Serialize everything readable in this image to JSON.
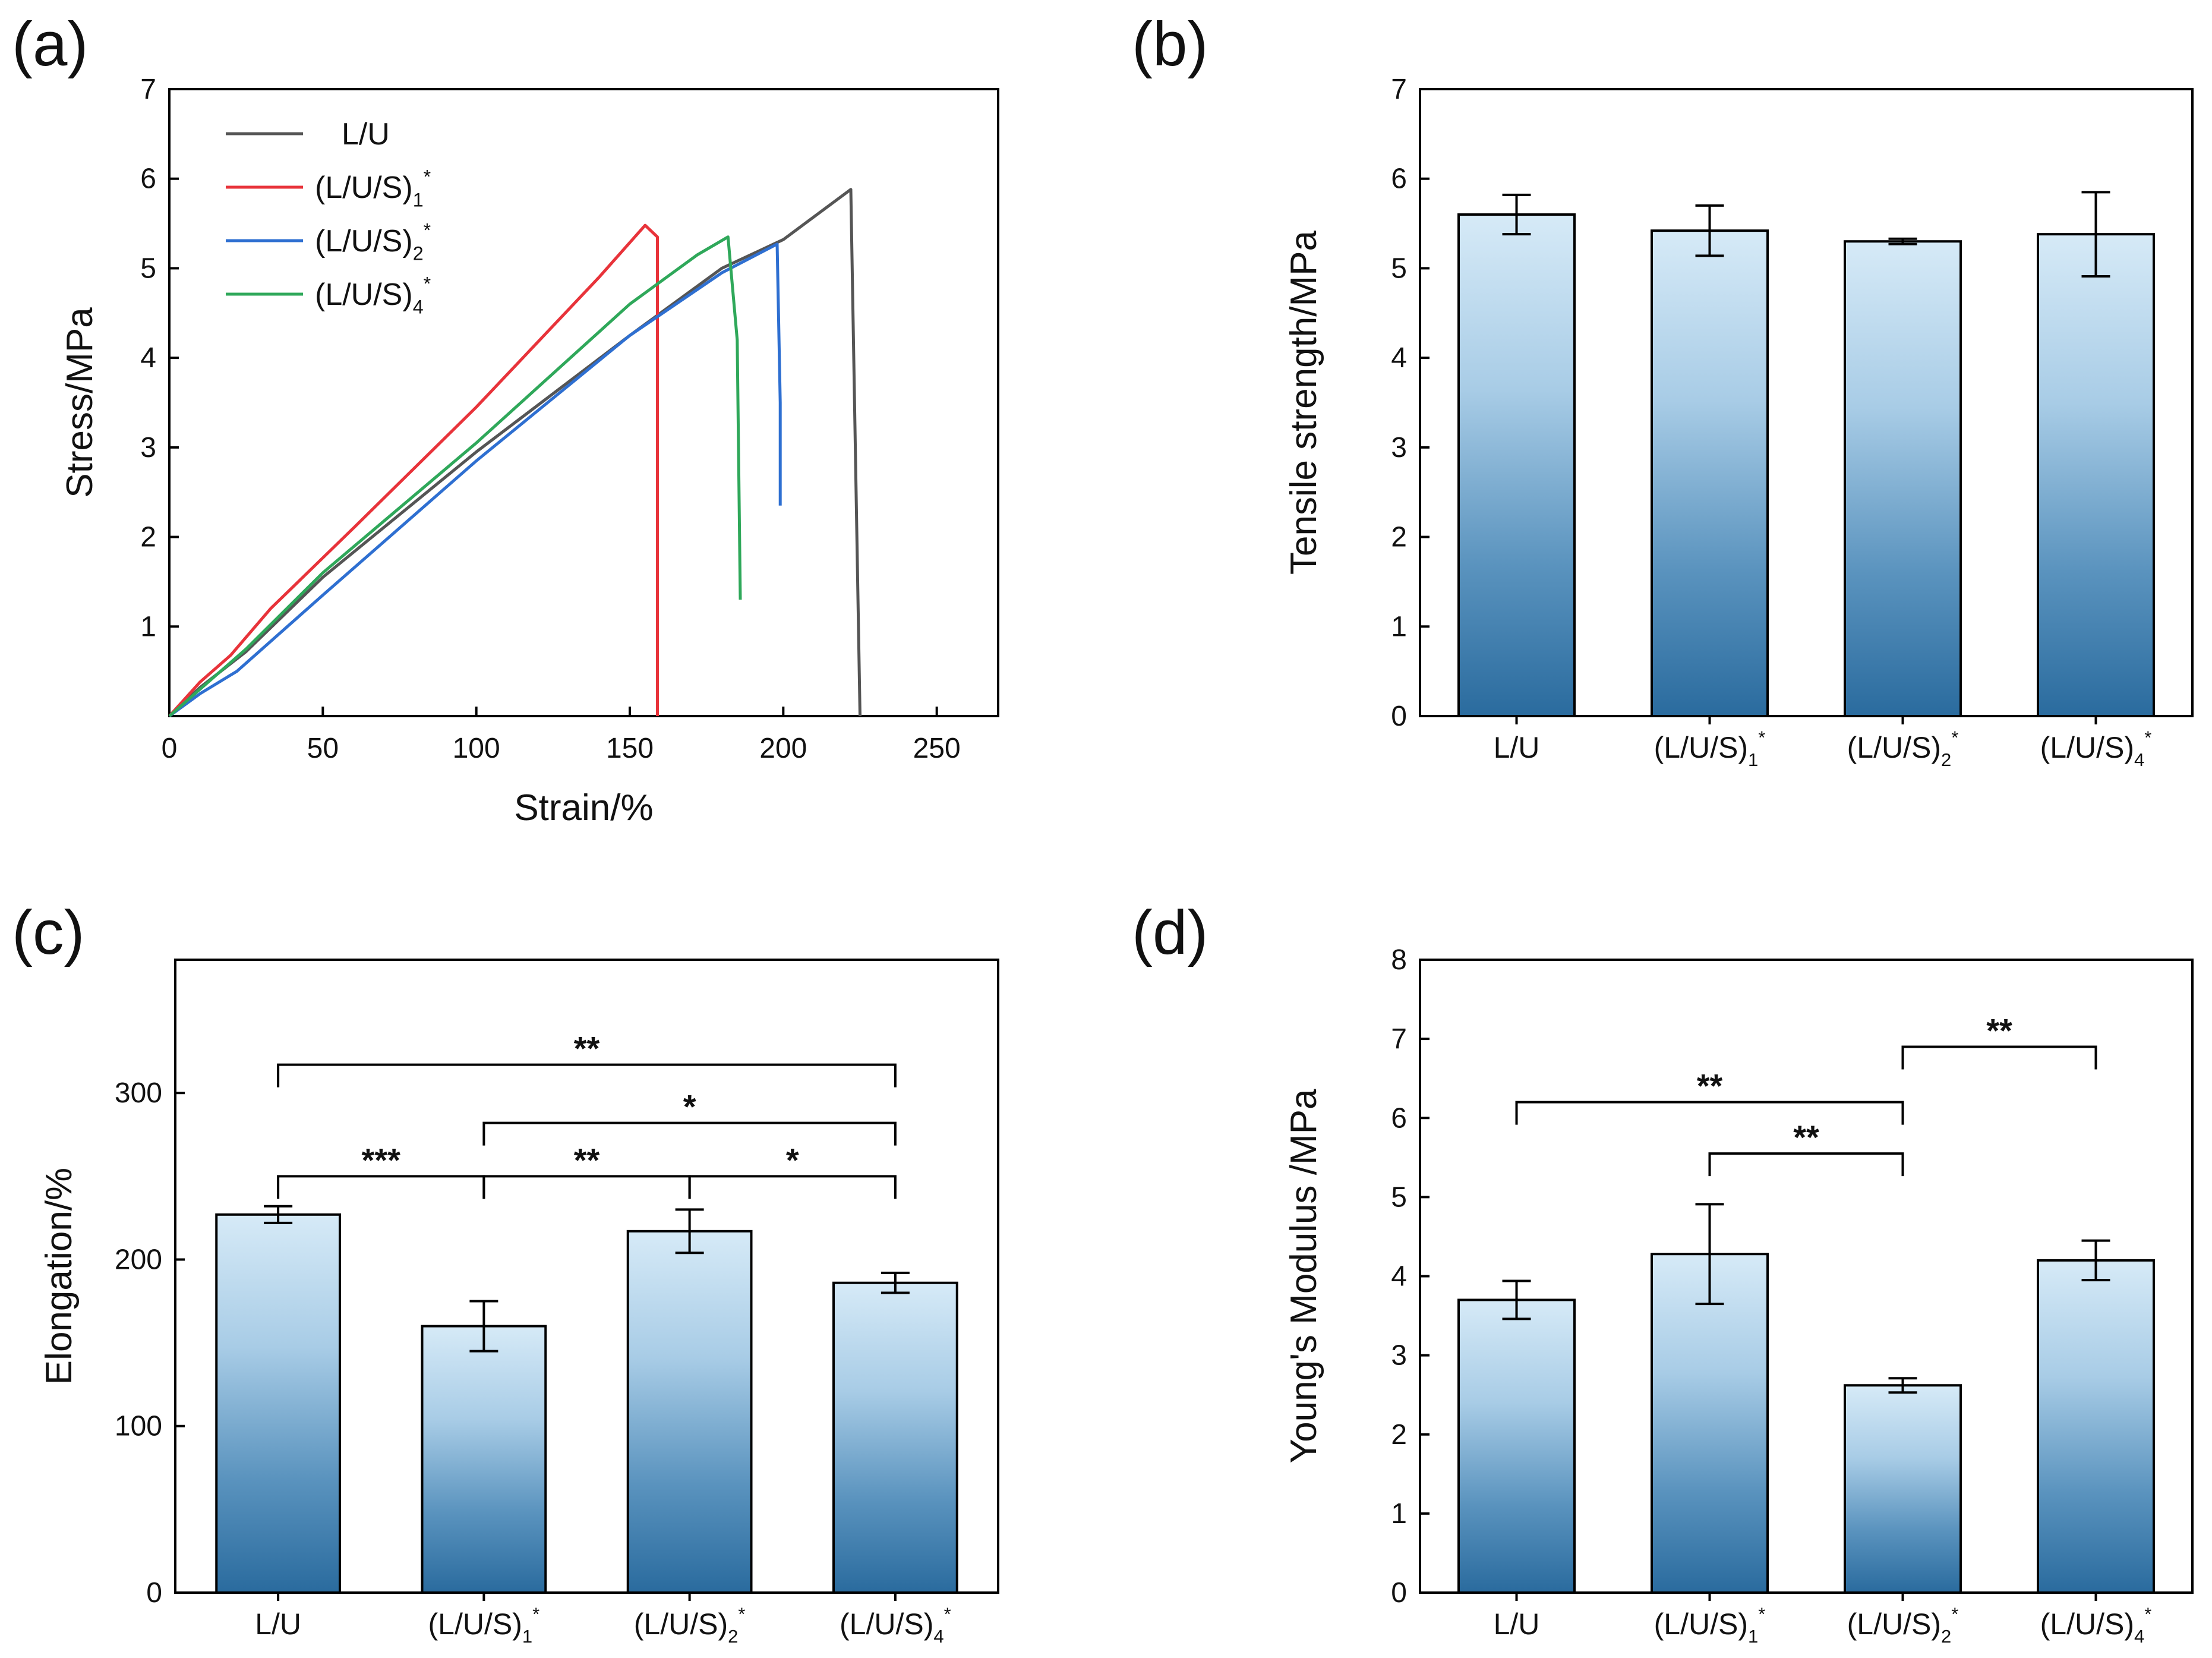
{
  "chart_data": [
    {
      "panel": "(a)",
      "type": "line",
      "xlabel": "Strain/%",
      "ylabel": "Stress/MPa",
      "xlim": [
        0,
        270
      ],
      "ylim": [
        0,
        7
      ],
      "xticks": [
        0,
        50,
        100,
        150,
        200,
        250
      ],
      "yticks": [
        1,
        2,
        3,
        4,
        5,
        6,
        7
      ],
      "legend_position": "top-left",
      "series": [
        {
          "name": "L/U",
          "color": "#555555",
          "points": [
            [
              0,
              0
            ],
            [
              10,
              0.32
            ],
            [
              25,
              0.72
            ],
            [
              50,
              1.55
            ],
            [
              100,
              2.95
            ],
            [
              150,
              4.25
            ],
            [
              180,
              5.0
            ],
            [
              200,
              5.32
            ],
            [
              222,
              5.88
            ],
            [
              225,
              0
            ]
          ]
        },
        {
          "name": "(L/U/S)1*",
          "base": "(L/U/S)",
          "sub": "1",
          "sup": "*",
          "color": "#e8333a",
          "points": [
            [
              0,
              0
            ],
            [
              10,
              0.38
            ],
            [
              20,
              0.68
            ],
            [
              33,
              1.2
            ],
            [
              60,
              2.1
            ],
            [
              100,
              3.45
            ],
            [
              140,
              4.9
            ],
            [
              155,
              5.48
            ],
            [
              159,
              5.35
            ],
            [
              159,
              0
            ]
          ]
        },
        {
          "name": "(L/U/S)2*",
          "base": "(L/U/S)",
          "sub": "2",
          "sup": "*",
          "color": "#2e6fd1",
          "points": [
            [
              0,
              0
            ],
            [
              10,
              0.25
            ],
            [
              22,
              0.5
            ],
            [
              50,
              1.35
            ],
            [
              100,
              2.85
            ],
            [
              150,
              4.25
            ],
            [
              180,
              4.95
            ],
            [
              198,
              5.27
            ],
            [
              199,
              3.5
            ],
            [
              199,
              2.35
            ]
          ]
        },
        {
          "name": "(L/U/S)4*",
          "base": "(L/U/S)",
          "sub": "4",
          "sup": "*",
          "color": "#2fa85a",
          "points": [
            [
              0,
              0
            ],
            [
              10,
              0.3
            ],
            [
              25,
              0.75
            ],
            [
              50,
              1.6
            ],
            [
              100,
              3.05
            ],
            [
              150,
              4.6
            ],
            [
              172,
              5.15
            ],
            [
              182,
              5.35
            ],
            [
              185,
              4.2
            ],
            [
              186,
              1.3
            ]
          ]
        }
      ]
    },
    {
      "panel": "(b)",
      "type": "bar",
      "ylabel": "Tensile strength/MPa",
      "ylim": [
        0,
        7
      ],
      "yticks": [
        0,
        1,
        2,
        3,
        4,
        5,
        6,
        7
      ],
      "categories": [
        {
          "base": "L/U",
          "sub": "",
          "sup": ""
        },
        {
          "base": "(L/U/S)",
          "sub": "1",
          "sup": "*"
        },
        {
          "base": "(L/U/S)",
          "sub": "2",
          "sup": "*"
        },
        {
          "base": "(L/U/S)",
          "sub": "4",
          "sup": "*"
        }
      ],
      "values": [
        5.6,
        5.42,
        5.3,
        5.38
      ],
      "errors": [
        0.22,
        0.28,
        0.03,
        0.47
      ]
    },
    {
      "panel": "(c)",
      "type": "bar",
      "ylabel": "Elongation/%",
      "ylim": [
        0,
        380
      ],
      "yticks": [
        0,
        100,
        200,
        300
      ],
      "categories": [
        {
          "base": "L/U",
          "sub": "",
          "sup": ""
        },
        {
          "base": "(L/U/S)",
          "sub": "1",
          "sup": "*"
        },
        {
          "base": "(L/U/S)",
          "sub": "2",
          "sup": "*"
        },
        {
          "base": "(L/U/S)",
          "sub": "4",
          "sup": "*"
        }
      ],
      "values": [
        227,
        160,
        217,
        186
      ],
      "errors": [
        5,
        15,
        13,
        6
      ],
      "significance": [
        {
          "from": 0,
          "to": 3,
          "level": 317,
          "label": "**"
        },
        {
          "from": 1,
          "to": 3,
          "level": 282,
          "label": "*"
        },
        {
          "from": 0,
          "to": 1,
          "level": 250,
          "label": "***"
        },
        {
          "from": 1,
          "to": 2,
          "level": 250,
          "label": "**"
        },
        {
          "from": 2,
          "to": 3,
          "level": 250,
          "label": "*"
        }
      ]
    },
    {
      "panel": "(d)",
      "type": "bar",
      "ylabel": "Young's Modulus /MPa",
      "ylim": [
        0,
        8
      ],
      "yticks": [
        0,
        1,
        2,
        3,
        4,
        5,
        6,
        7,
        8
      ],
      "categories": [
        {
          "base": "L/U",
          "sub": "",
          "sup": ""
        },
        {
          "base": "(L/U/S)",
          "sub": "1",
          "sup": "*"
        },
        {
          "base": "(L/U/S)",
          "sub": "2",
          "sup": "*"
        },
        {
          "base": "(L/U/S)",
          "sub": "4",
          "sup": "*"
        }
      ],
      "values": [
        3.7,
        4.28,
        2.62,
        4.2
      ],
      "errors": [
        0.24,
        0.63,
        0.09,
        0.25
      ],
      "significance": [
        {
          "from": 2,
          "to": 3,
          "level": 6.9,
          "label": "**"
        },
        {
          "from": 0,
          "to": 2,
          "level": 6.2,
          "label": "**"
        },
        {
          "from": 1,
          "to": 2,
          "level": 5.55,
          "label": "**"
        }
      ]
    }
  ]
}
